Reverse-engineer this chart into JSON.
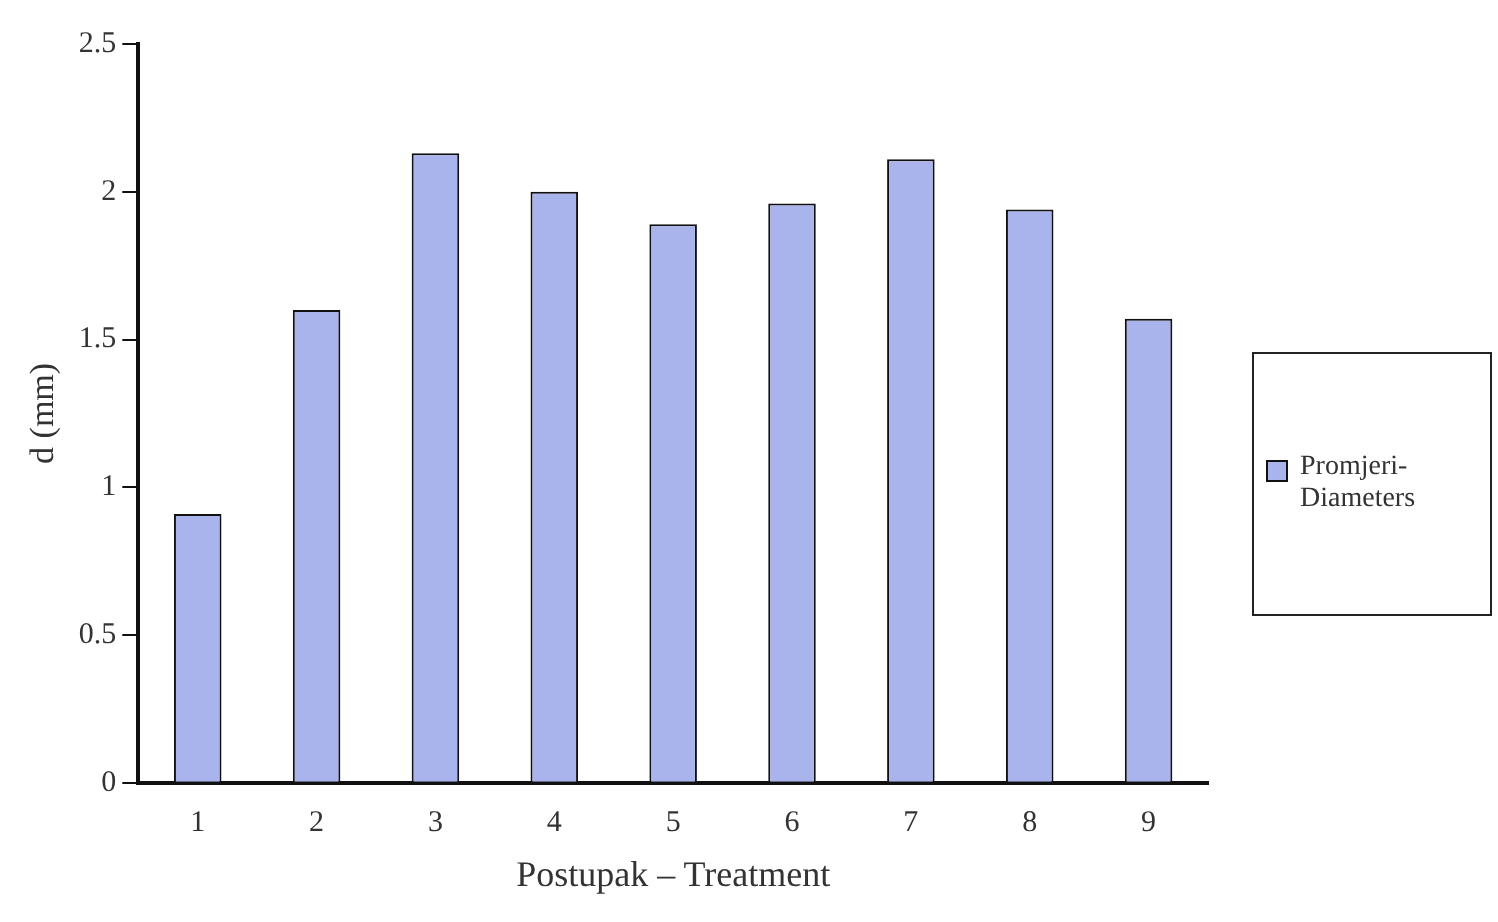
{
  "chart_data": {
    "type": "bar",
    "xlabel": "Postupak – Treatment",
    "ylabel": "d (mm)",
    "categories": [
      "1",
      "2",
      "3",
      "4",
      "5",
      "6",
      "7",
      "8",
      "9"
    ],
    "series": [
      {
        "name": "Promjeri-Diameters",
        "color": "#aab4ec",
        "values": [
          0.91,
          1.6,
          2.13,
          2.0,
          1.89,
          1.96,
          2.11,
          1.94,
          1.57
        ]
      }
    ],
    "ylim": [
      0,
      2.5
    ],
    "yticks": [
      0,
      0.5,
      1,
      1.5,
      2,
      2.5
    ],
    "grid": false,
    "legend": "right"
  }
}
